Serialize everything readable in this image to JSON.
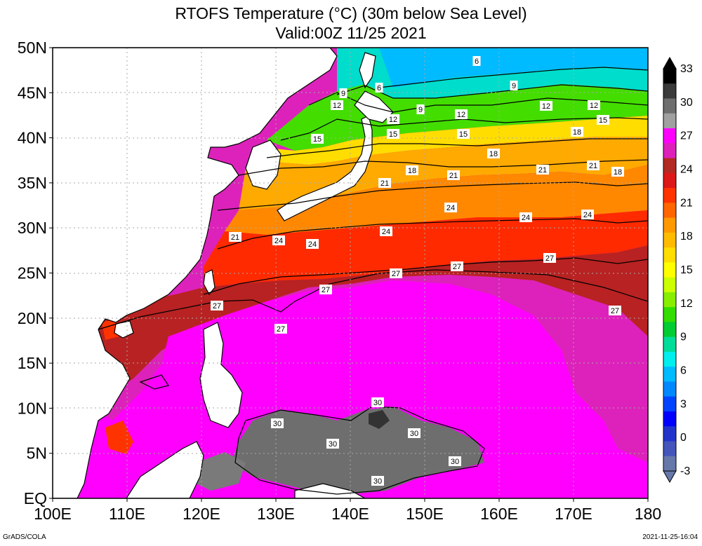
{
  "title": {
    "line1": "RTOFS Temperature (°C) (30m below Sea Level)",
    "line2": "Valid:00Z 11/25 2021"
  },
  "footer": {
    "left": "GrADS/COLA",
    "right": "2021-11-25-16:04"
  },
  "map": {
    "lon_range": [
      100,
      180
    ],
    "lat_range": [
      0,
      50
    ],
    "x_ticks": [
      "100E",
      "110E",
      "120E",
      "130E",
      "140E",
      "150E",
      "160E",
      "170E",
      "180"
    ],
    "y_ticks": [
      "50N",
      "45N",
      "40N",
      "35N",
      "30N",
      "25N",
      "20N",
      "15N",
      "10N",
      "5N",
      "EQ"
    ],
    "grid": true,
    "colors": {
      "land": "#ffffff",
      "coast": "#000000",
      "grid": "#aaaaaa"
    }
  },
  "colorbar": {
    "labels": [
      "33",
      "30",
      "27",
      "24",
      "21",
      "18",
      "15",
      "12",
      "9",
      "6",
      "3",
      "0",
      "-3"
    ],
    "colors": [
      "#000000",
      "#3a3a3a",
      "#6e6e6e",
      "#a0a0a0",
      "#ff00ff",
      "#dd22bb",
      "#b22a22",
      "#dd1818",
      "#ff3300",
      "#ff6600",
      "#ff9900",
      "#ffbb00",
      "#ffdd00",
      "#ffff00",
      "#ccff00",
      "#88ee00",
      "#33dd00",
      "#00cc33",
      "#00dd99",
      "#00eeee",
      "#00bbff",
      "#0088ff",
      "#0044ff",
      "#0000ff",
      "#2233cc",
      "#4455bb",
      "#6677aa"
    ]
  },
  "contour_labels": [
    "6",
    "6",
    "9",
    "9",
    "9",
    "12",
    "12",
    "12",
    "12",
    "12",
    "15",
    "15",
    "15",
    "15",
    "18",
    "18",
    "18",
    "18",
    "21",
    "21",
    "21",
    "21",
    "21",
    "24",
    "24",
    "24",
    "24",
    "24",
    "24",
    "27",
    "27",
    "27",
    "27",
    "27",
    "27",
    "27",
    "30",
    "30",
    "30",
    "30",
    "30",
    "30"
  ]
}
